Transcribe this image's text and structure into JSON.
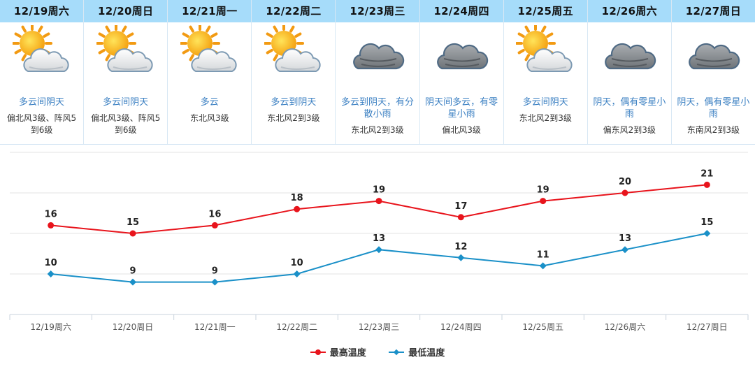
{
  "colors": {
    "header_bg": "#a6dcfa",
    "desc_text": "#3a7fc2",
    "high_series": "#e8141c",
    "low_series": "#1a90c8"
  },
  "forecast": {
    "days": [
      {
        "date": "12/19周六",
        "icon": "sun-cloud-icon",
        "desc": "多云间阴天",
        "wind": "偏北风3级、阵风5到6级"
      },
      {
        "date": "12/20周日",
        "icon": "sun-cloud-icon",
        "desc": "多云间阴天",
        "wind": "偏北风3级、阵风5到6级"
      },
      {
        "date": "12/21周一",
        "icon": "sun-cloud-icon",
        "desc": "多云",
        "wind": "东北风3级"
      },
      {
        "date": "12/22周二",
        "icon": "sun-cloud-icon",
        "desc": "多云到阴天",
        "wind": "东北风2到3级"
      },
      {
        "date": "12/23周三",
        "icon": "overcast-cloud-icon",
        "desc": "多云到阴天，有分散小雨",
        "wind": "东北风2到3级"
      },
      {
        "date": "12/24周四",
        "icon": "overcast-cloud-icon",
        "desc": "阴天间多云，有零星小雨",
        "wind": "偏北风3级"
      },
      {
        "date": "12/25周五",
        "icon": "sun-cloud-icon",
        "desc": "多云间阴天",
        "wind": "东北风2到3级"
      },
      {
        "date": "12/26周六",
        "icon": "overcast-cloud-icon",
        "desc": "阴天，偶有零星小雨",
        "wind": "偏东风2到3级"
      },
      {
        "date": "12/27周日",
        "icon": "overcast-cloud-icon",
        "desc": "阴天，偶有零星小雨",
        "wind": "东南风2到3级"
      }
    ]
  },
  "chart_data": {
    "type": "line",
    "title": "",
    "xlabel": "",
    "ylabel": "",
    "categories": [
      "12/19周六",
      "12/20周日",
      "12/21周一",
      "12/22周二",
      "12/23周三",
      "12/24周四",
      "12/25周五",
      "12/26周六",
      "12/27周日"
    ],
    "series": [
      {
        "name": "最高温度",
        "values": [
          16,
          15,
          16,
          18,
          19,
          17,
          19,
          20,
          21
        ],
        "color": "#e8141c",
        "marker": "circle"
      },
      {
        "name": "最低温度",
        "values": [
          10,
          9,
          9,
          10,
          13,
          12,
          11,
          13,
          15
        ],
        "color": "#1a90c8",
        "marker": "diamond"
      }
    ],
    "ylim": [
      5,
      25
    ],
    "grid": true,
    "legend_position": "bottom-center",
    "data_labels": true
  }
}
